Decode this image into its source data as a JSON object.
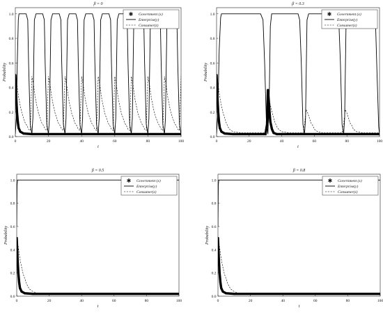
{
  "chart_data": [
    {
      "type": "line",
      "title": "β = 0",
      "xlabel": "t",
      "ylabel": "Probability",
      "xlim": [
        0,
        100
      ],
      "ylim": [
        0,
        1.05
      ],
      "xticks": [
        "0",
        "20",
        "40",
        "60",
        "80",
        "100"
      ],
      "yticks": [
        "0.0",
        "0.2",
        "0.4",
        "0.6",
        "0.8",
        "1.0"
      ],
      "legend_position": "top-right",
      "series": [
        {
          "name": "Government (x)",
          "style": "markers",
          "x": [
            0,
            0.3,
            0.6,
            1,
            1.5,
            2,
            3,
            5,
            10,
            20,
            40,
            60,
            80,
            100
          ],
          "y": [
            0.5,
            0.4,
            0.3,
            0.2,
            0.12,
            0.07,
            0.04,
            0.025,
            0.02,
            0.02,
            0.02,
            0.02,
            0.02,
            0.02
          ]
        },
        {
          "name": "Enterprise(y)",
          "style": "solid",
          "x": [
            0,
            0.6,
            1.2,
            1.8,
            2.2,
            2.5,
            3.5,
            6.5,
            7.5,
            8,
            9,
            10,
            10.6,
            11.5,
            12.5,
            16.5,
            17.5,
            18,
            19,
            20,
            20.6,
            21.5,
            22.5,
            26.5,
            27.5,
            28,
            29,
            30,
            30.6,
            31.5,
            32.5,
            36.5,
            37.5,
            38,
            39,
            40,
            40.6,
            41.5,
            42.5,
            46.5,
            47.5,
            48,
            49,
            50,
            50.6,
            51.5,
            52.5,
            56.5,
            57.5,
            58,
            59,
            60,
            60.6,
            61.5,
            62.5,
            66.5,
            67.5,
            68,
            69,
            70,
            70.6,
            71.5,
            72.5,
            76.5,
            77.5,
            78,
            79,
            80,
            80.6,
            81.5,
            82.5,
            86.5,
            87.5,
            88,
            89,
            90,
            90.6,
            91.5,
            92.5,
            96.5,
            97.5,
            98,
            99,
            100
          ],
          "y": [
            0.02,
            0.15,
            0.6,
            0.95,
            1.0,
            1.0,
            1.0,
            1.0,
            0.95,
            0.6,
            0.1,
            0.02,
            0.15,
            0.95,
            1.0,
            1.0,
            0.95,
            0.6,
            0.1,
            0.02,
            0.15,
            0.95,
            1.0,
            1.0,
            0.95,
            0.6,
            0.1,
            0.02,
            0.15,
            0.95,
            1.0,
            1.0,
            0.95,
            0.6,
            0.1,
            0.02,
            0.15,
            0.95,
            1.0,
            1.0,
            0.95,
            0.6,
            0.1,
            0.02,
            0.15,
            0.95,
            1.0,
            1.0,
            0.95,
            0.6,
            0.1,
            0.02,
            0.15,
            0.95,
            1.0,
            1.0,
            0.95,
            0.6,
            0.1,
            0.02,
            0.15,
            0.95,
            1.0,
            1.0,
            0.95,
            0.6,
            0.1,
            0.02,
            0.15,
            0.95,
            1.0,
            1.0,
            0.95,
            0.6,
            0.1,
            0.02,
            0.15,
            0.95,
            1.0,
            1.0,
            0.95,
            0.6,
            0.1,
            0.02
          ]
        },
        {
          "name": "Consumer(z)",
          "style": "dashed",
          "x": [
            0,
            1,
            2,
            3,
            4,
            5,
            6,
            7,
            8,
            9,
            10,
            11,
            12,
            13,
            14,
            15,
            16,
            17,
            18,
            19,
            20,
            21,
            22,
            23,
            24,
            25,
            26,
            27,
            28,
            29,
            30,
            31,
            32,
            33,
            34,
            35,
            36,
            37,
            38,
            39,
            40,
            41,
            42,
            43,
            44,
            45,
            46,
            47,
            48,
            49,
            50,
            51,
            52,
            53,
            54,
            55,
            56,
            57,
            58,
            59,
            60,
            61,
            62,
            63,
            64,
            65,
            66,
            67,
            68,
            69,
            70,
            71,
            72,
            73,
            74,
            75,
            76,
            77,
            78,
            79,
            80,
            81,
            82,
            83,
            84,
            85,
            86,
            87,
            88,
            89,
            90,
            91,
            92,
            93,
            94,
            95,
            96,
            97,
            98,
            99,
            100
          ],
          "y": [
            0.5,
            0.42,
            0.32,
            0.25,
            0.19,
            0.15,
            0.11,
            0.09,
            0.06,
            0.05,
            0.49,
            0.42,
            0.32,
            0.25,
            0.19,
            0.15,
            0.11,
            0.09,
            0.06,
            0.05,
            0.49,
            0.42,
            0.32,
            0.25,
            0.19,
            0.15,
            0.11,
            0.09,
            0.06,
            0.05,
            0.49,
            0.42,
            0.32,
            0.25,
            0.19,
            0.15,
            0.11,
            0.09,
            0.06,
            0.05,
            0.49,
            0.42,
            0.32,
            0.25,
            0.19,
            0.15,
            0.11,
            0.09,
            0.06,
            0.05,
            0.49,
            0.42,
            0.32,
            0.25,
            0.19,
            0.15,
            0.11,
            0.09,
            0.06,
            0.05,
            0.49,
            0.42,
            0.32,
            0.25,
            0.19,
            0.15,
            0.11,
            0.09,
            0.06,
            0.05,
            0.49,
            0.42,
            0.32,
            0.25,
            0.19,
            0.15,
            0.11,
            0.09,
            0.06,
            0.05,
            0.49,
            0.42,
            0.32,
            0.25,
            0.19,
            0.15,
            0.11,
            0.09,
            0.06,
            0.05,
            0.49,
            0.42,
            0.32,
            0.25,
            0.19,
            0.15,
            0.11,
            0.09,
            0.06,
            0.05,
            0.49
          ]
        }
      ]
    },
    {
      "type": "line",
      "title": "β = 0.3",
      "xlabel": "t",
      "ylabel": "Probability",
      "xlim": [
        0,
        100
      ],
      "ylim": [
        0,
        1.05
      ],
      "xticks": [
        "0",
        "20",
        "40",
        "60",
        "80",
        "100"
      ],
      "yticks": [
        "0.0",
        "0.2",
        "0.4",
        "0.6",
        "0.8",
        "1.0"
      ],
      "legend_position": "top-right",
      "series": [
        {
          "name": "Government (x)",
          "style": "markers",
          "x": [
            0,
            0.3,
            0.6,
            1,
            1.5,
            2,
            3,
            5,
            10,
            20,
            30,
            31,
            31.5,
            32,
            32.5,
            33,
            34,
            35,
            37,
            40,
            50,
            60,
            70,
            80,
            90,
            100
          ],
          "y": [
            0.5,
            0.4,
            0.3,
            0.2,
            0.12,
            0.07,
            0.04,
            0.025,
            0.02,
            0.02,
            0.02,
            0.1,
            0.38,
            0.3,
            0.2,
            0.12,
            0.06,
            0.03,
            0.02,
            0.02,
            0.02,
            0.02,
            0.02,
            0.02,
            0.02,
            0.02
          ]
        },
        {
          "name": "Enterprise(y)",
          "style": "solid",
          "x": [
            0,
            0.8,
            1.6,
            2.5,
            3,
            4,
            27,
            28.5,
            29.5,
            30.5,
            31.5,
            32.3,
            33,
            33.8,
            35,
            50,
            51,
            52,
            53,
            54,
            54.6,
            55.5,
            56.5,
            74,
            75,
            76,
            77,
            78,
            78.6,
            79.5,
            80.5,
            96,
            97.5,
            98.5,
            99.5,
            100
          ],
          "y": [
            0.02,
            0.2,
            0.7,
            0.97,
            1.0,
            1.0,
            1.0,
            0.95,
            0.6,
            0.15,
            0.02,
            0.3,
            0.9,
            1.0,
            1.0,
            1.0,
            0.95,
            0.6,
            0.1,
            0.02,
            0.15,
            0.95,
            1.0,
            1.0,
            0.95,
            0.6,
            0.1,
            0.02,
            0.15,
            0.95,
            1.0,
            1.0,
            0.95,
            0.5,
            0.08,
            0.02
          ]
        },
        {
          "name": "Consumer(z)",
          "style": "dashed",
          "x": [
            0,
            1,
            2,
            3,
            4,
            5,
            6,
            7,
            8,
            10,
            15,
            20,
            25,
            30,
            31.5,
            32,
            33,
            34,
            35,
            36,
            37,
            38,
            40,
            45,
            50,
            53,
            54,
            55,
            56,
            57,
            58,
            59,
            60,
            62,
            65,
            70,
            77,
            78,
            79,
            80,
            81,
            82,
            83,
            84,
            86,
            90,
            95,
            100
          ],
          "y": [
            0.5,
            0.42,
            0.32,
            0.25,
            0.19,
            0.15,
            0.11,
            0.08,
            0.06,
            0.04,
            0.03,
            0.03,
            0.03,
            0.03,
            0.12,
            0.3,
            0.26,
            0.2,
            0.15,
            0.11,
            0.08,
            0.06,
            0.04,
            0.03,
            0.03,
            0.03,
            0.1,
            0.22,
            0.19,
            0.15,
            0.11,
            0.09,
            0.06,
            0.04,
            0.03,
            0.03,
            0.03,
            0.1,
            0.22,
            0.19,
            0.15,
            0.11,
            0.09,
            0.06,
            0.04,
            0.03,
            0.03,
            0.03
          ]
        }
      ]
    },
    {
      "type": "line",
      "title": "β = 0.5",
      "xlabel": "t",
      "ylabel": "Probability",
      "xlim": [
        0,
        100
      ],
      "ylim": [
        0,
        1.05
      ],
      "xticks": [
        "0",
        "20",
        "40",
        "60",
        "80",
        "100"
      ],
      "yticks": [
        "0.0",
        "0.2",
        "0.4",
        "0.6",
        "0.8",
        "1.0"
      ],
      "legend_position": "top-right",
      "series": [
        {
          "name": "Government (x)",
          "style": "markers",
          "x": [
            0,
            0.3,
            0.6,
            1,
            1.5,
            2,
            3,
            5,
            10,
            20,
            40,
            60,
            80,
            100
          ],
          "y": [
            0.5,
            0.4,
            0.3,
            0.2,
            0.12,
            0.07,
            0.04,
            0.025,
            0.02,
            0.02,
            0.02,
            0.02,
            0.02,
            0.02
          ]
        },
        {
          "name": "Enterprise(y)",
          "style": "solid",
          "x": [
            0,
            0.2,
            0.5,
            1,
            100
          ],
          "y": [
            0.6,
            0.95,
            1.0,
            1.0,
            1.0
          ]
        },
        {
          "name": "Consumer(z)",
          "style": "dashed",
          "x": [
            0,
            1,
            2,
            3,
            4,
            5,
            6,
            7,
            8,
            10,
            12,
            15,
            20,
            40,
            60,
            80,
            100
          ],
          "y": [
            0.5,
            0.42,
            0.32,
            0.25,
            0.19,
            0.15,
            0.11,
            0.08,
            0.06,
            0.04,
            0.03,
            0.02,
            0.02,
            0.02,
            0.02,
            0.02,
            0.02
          ]
        }
      ]
    },
    {
      "type": "line",
      "title": "β = 0.8",
      "xlabel": "t",
      "ylabel": "Probability",
      "xlim": [
        0,
        100
      ],
      "ylim": [
        0,
        1.05
      ],
      "xticks": [
        "0",
        "20",
        "40",
        "60",
        "80",
        "100"
      ],
      "yticks": [
        "0.0",
        "0.2",
        "0.4",
        "0.6",
        "0.8",
        "1.0"
      ],
      "legend_position": "top-right",
      "series": [
        {
          "name": "Government (x)",
          "style": "markers",
          "x": [
            0,
            0.3,
            0.6,
            1,
            1.5,
            2,
            3,
            5,
            10,
            20,
            40,
            60,
            80,
            100
          ],
          "y": [
            0.5,
            0.4,
            0.3,
            0.2,
            0.12,
            0.07,
            0.04,
            0.025,
            0.02,
            0.02,
            0.02,
            0.02,
            0.02,
            0.02
          ]
        },
        {
          "name": "Enterprise(y)",
          "style": "solid",
          "x": [
            0,
            0.2,
            0.5,
            1,
            100
          ],
          "y": [
            0.6,
            0.95,
            1.0,
            1.0,
            1.0
          ]
        },
        {
          "name": "Consumer(z)",
          "style": "dashed",
          "x": [
            0,
            1,
            2,
            3,
            4,
            5,
            6,
            7,
            8,
            10,
            12,
            15,
            20,
            40,
            60,
            80,
            100
          ],
          "y": [
            0.5,
            0.42,
            0.32,
            0.25,
            0.19,
            0.15,
            0.11,
            0.08,
            0.06,
            0.04,
            0.03,
            0.02,
            0.02,
            0.02,
            0.02,
            0.02,
            0.02
          ]
        }
      ]
    }
  ]
}
